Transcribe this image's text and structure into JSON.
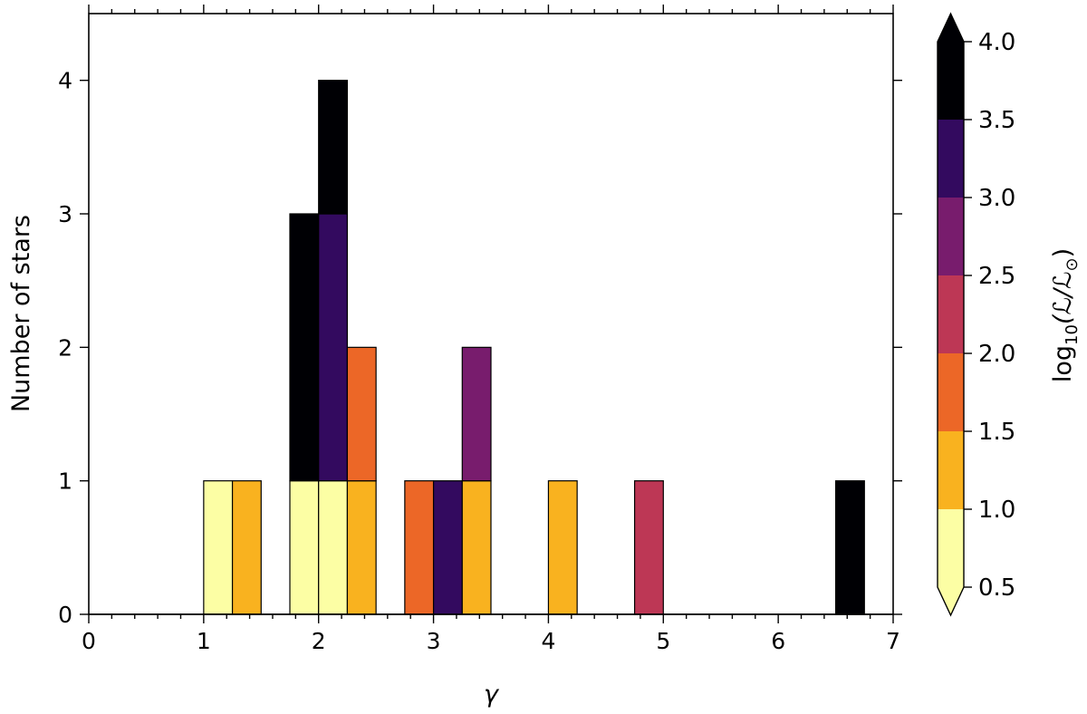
{
  "chart_data": {
    "type": "bar",
    "stacked": true,
    "xlabel": "γ",
    "ylabel": "Number of stars",
    "xlim": [
      0,
      7
    ],
    "ylim": [
      0,
      4.5
    ],
    "xticks": [
      "0",
      "1",
      "2",
      "3",
      "4",
      "5",
      "6",
      "7"
    ],
    "yticks": [
      "0",
      "1",
      "2",
      "3",
      "4"
    ],
    "bin_width": 0.25,
    "bars": [
      {
        "x": 1.0,
        "y0": 0,
        "y1": 1,
        "luminosity_bin": "0.5-1.0",
        "color": "#fcfea4"
      },
      {
        "x": 1.25,
        "y0": 0,
        "y1": 1,
        "luminosity_bin": "1.0-1.5",
        "color": "#f9b21f"
      },
      {
        "x": 1.75,
        "y0": 0,
        "y1": 1,
        "luminosity_bin": "0.5-1.0",
        "color": "#fcfea4"
      },
      {
        "x": 1.75,
        "y0": 1,
        "y1": 3,
        "luminosity_bin": "3.5-4.0",
        "color": "#000004"
      },
      {
        "x": 2.0,
        "y0": 0,
        "y1": 1,
        "luminosity_bin": "0.5-1.0",
        "color": "#fcfea4"
      },
      {
        "x": 2.0,
        "y0": 1,
        "y1": 3,
        "luminosity_bin": "3.0-3.5",
        "color": "#330a5f"
      },
      {
        "x": 2.0,
        "y0": 3,
        "y1": 4,
        "luminosity_bin": "3.5-4.0",
        "color": "#000004"
      },
      {
        "x": 2.25,
        "y0": 0,
        "y1": 1,
        "luminosity_bin": "1.0-1.5",
        "color": "#f9b21f"
      },
      {
        "x": 2.25,
        "y0": 1,
        "y1": 2,
        "luminosity_bin": "1.5-2.0",
        "color": "#ec6727"
      },
      {
        "x": 2.75,
        "y0": 0,
        "y1": 1,
        "luminosity_bin": "1.5-2.0",
        "color": "#ec6727"
      },
      {
        "x": 3.0,
        "y0": 0,
        "y1": 1,
        "luminosity_bin": "3.0-3.5",
        "color": "#330a5f"
      },
      {
        "x": 3.25,
        "y0": 0,
        "y1": 1,
        "luminosity_bin": "1.0-1.5",
        "color": "#f9b21f"
      },
      {
        "x": 3.25,
        "y0": 1,
        "y1": 2,
        "luminosity_bin": "2.5-3.0",
        "color": "#781c6d"
      },
      {
        "x": 4.0,
        "y0": 0,
        "y1": 1,
        "luminosity_bin": "1.0-1.5",
        "color": "#f9b21f"
      },
      {
        "x": 4.75,
        "y0": 0,
        "y1": 1,
        "luminosity_bin": "2.0-2.5",
        "color": "#bd3755"
      },
      {
        "x": 6.5,
        "y0": 0,
        "y1": 1,
        "luminosity_bin": "3.5-4.0",
        "color": "#000004"
      }
    ],
    "colorbar": {
      "label_prefix": "log",
      "label_sub": "10",
      "label_suffix": "(ℒ/ℒ",
      "label_sun_sub": "⊙",
      "label_close": ")",
      "ticks": [
        "0.5",
        "1.0",
        "1.5",
        "2.0",
        "2.5",
        "3.0",
        "3.5",
        "4.0"
      ],
      "tick_values": [
        0.5,
        1.0,
        1.5,
        2.0,
        2.5,
        3.0,
        3.5,
        4.0
      ],
      "colors": [
        "#fcfea4",
        "#f9b21f",
        "#ec6727",
        "#bd3755",
        "#781c6d",
        "#330a5f",
        "#000004"
      ],
      "extend_min_color": "#fcfea4",
      "extend_max_color": "#000004",
      "extend": "both"
    }
  }
}
